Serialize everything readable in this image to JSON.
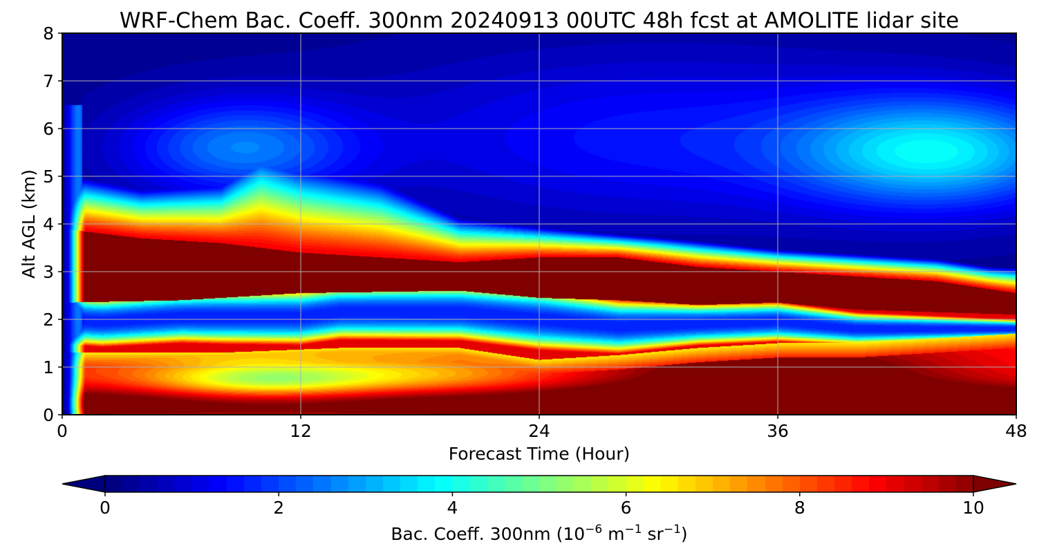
{
  "chart_data": {
    "type": "heatmap",
    "subtype": "filled-contour time-height cross section",
    "title": "WRF-Chem Bac. Coeff. 300nm  20240913 00UTC 48h fcst at AMOLITE lidar site",
    "xlabel": "Forecast Time (Hour)",
    "ylabel": "Alt AGL (km)",
    "xlim": [
      0,
      48
    ],
    "ylim": [
      0,
      8
    ],
    "xticks": [
      0,
      12,
      24,
      36,
      48
    ],
    "yticks": [
      0,
      1,
      2,
      3,
      4,
      5,
      6,
      7,
      8
    ],
    "grid": true,
    "colormap": "jet",
    "colorbar": {
      "orientation": "horizontal",
      "placement": "bottom",
      "label_prefix": "Bac. Coeff. 300nm  (10",
      "label_exp1": "−6",
      "label_mid1": " m",
      "label_exp2": "−1",
      "label_mid2": " sr",
      "label_exp3": "−1",
      "label_suffix": ")",
      "vmin": 0,
      "vmax": 10,
      "ticks": [
        0,
        2,
        4,
        6,
        8,
        10
      ],
      "extend": "both"
    },
    "features": [
      {
        "name": "upper clean air",
        "altitude_km": [
          5.5,
          8
        ],
        "time_h": [
          0,
          30
        ],
        "value": 0.3
      },
      {
        "name": "upper aerosol plume",
        "altitude_km": [
          4.3,
          6.5
        ],
        "time_h": [
          38,
          48
        ],
        "value": 3.5
      },
      {
        "name": "elevated aerosol layer core",
        "altitude_km": [
          2.3,
          3.8
        ],
        "time_h": [
          1,
          48
        ],
        "value": 10
      },
      {
        "name": "clean gap",
        "altitude_km": [
          1.6,
          2.3
        ],
        "time_h": [
          1,
          40
        ],
        "value": 2
      },
      {
        "name": "lower aerosol layer",
        "altitude_km": [
          0,
          1.3
        ],
        "time_h": [
          1,
          48
        ],
        "value": 8.5
      },
      {
        "name": "yellow pocket",
        "altitude_km": [
          0.4,
          1.0
        ],
        "time_h": [
          6,
          14
        ],
        "value": 6.5
      }
    ]
  }
}
